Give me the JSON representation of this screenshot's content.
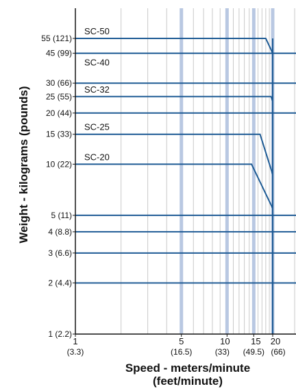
{
  "chart_data": {
    "type": "line",
    "xlabel": "Speed - meters/minute",
    "xlabel_units": "(feet/minute)",
    "ylabel": "Weight - kilograms (pounds)",
    "x_scale": "log",
    "y_scale": "log",
    "xlim": [
      1,
      25
    ],
    "ylim": [
      1,
      90
    ],
    "x_ticks": [
      {
        "value": 1,
        "label": "1",
        "sublabel": "(3.3)"
      },
      {
        "value": 5,
        "label": "5",
        "sublabel": "(16.5)"
      },
      {
        "value": 10,
        "label": "10",
        "sublabel": "(33)"
      },
      {
        "value": 15,
        "label": "15",
        "sublabel": "(49.5)"
      },
      {
        "value": 20,
        "label": "20",
        "sublabel": "(66)"
      }
    ],
    "y_ticks": [
      {
        "value": 1,
        "label": "1 (2.2)"
      },
      {
        "value": 2,
        "label": "2 (4.4)"
      },
      {
        "value": 3,
        "label": "3 (6.6)"
      },
      {
        "value": 4,
        "label": "4 (8.8)"
      },
      {
        "value": 5,
        "label": "5 (11)"
      },
      {
        "value": 10,
        "label": "10 (22)"
      },
      {
        "value": 15,
        "label": "15 (33)"
      },
      {
        "value": 20,
        "label": "20 (44)"
      },
      {
        "value": 25,
        "label": "25 (55)"
      },
      {
        "value": 30,
        "label": "30 (66)"
      },
      {
        "value": 45,
        "label": "45 (99)"
      },
      {
        "value": 55,
        "label": "55 (121)"
      }
    ],
    "highlight_x": [
      5,
      10,
      15,
      20
    ],
    "series": [
      {
        "name": "SC-50",
        "x": [
          1,
          18,
          20
        ],
        "y": [
          55,
          55,
          45
        ]
      },
      {
        "name": "SC-40",
        "x": [
          1,
          20
        ],
        "y": [
          45,
          45
        ]
      },
      {
        "name": "SC-32",
        "x": [
          1,
          19.5,
          20
        ],
        "y": [
          25,
          25,
          23.5
        ]
      },
      {
        "name": "SC-25",
        "x": [
          1,
          16.5,
          20
        ],
        "y": [
          15,
          15,
          8.7
        ]
      },
      {
        "name": "SC-20",
        "x": [
          1,
          14.5,
          20
        ],
        "y": [
          10,
          10,
          5.5
        ]
      }
    ],
    "horizontal_lines": [
      30,
      20,
      5,
      4,
      3,
      2
    ],
    "colors": {
      "line": "#1d5a94",
      "highlight": "#b9c8e2",
      "grid": "#c9c9c9",
      "axis": "#111111"
    }
  }
}
